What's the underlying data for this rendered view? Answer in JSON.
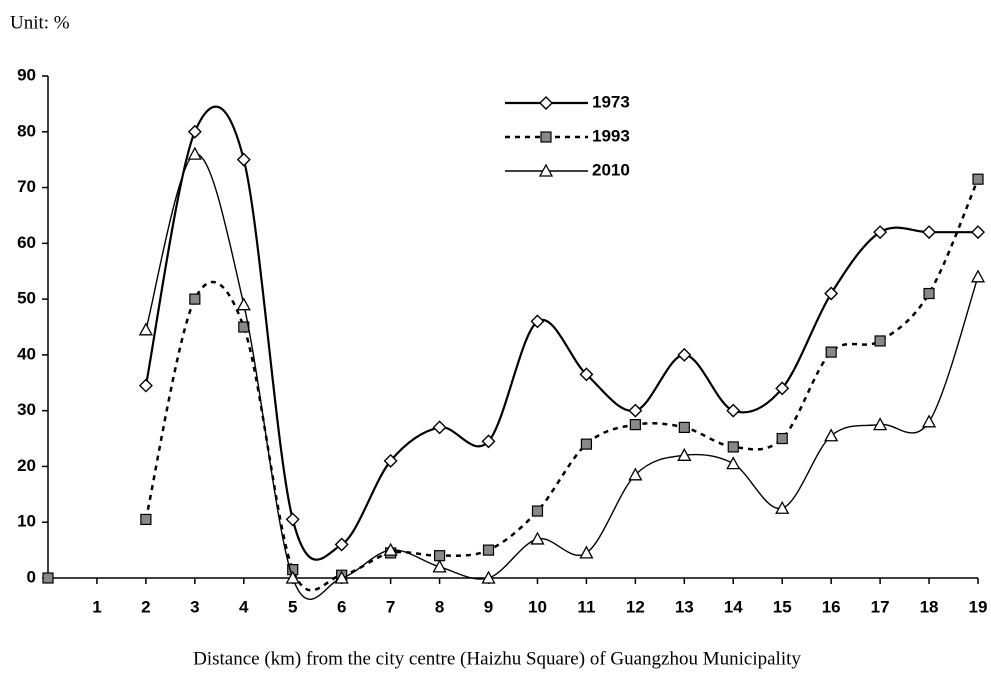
{
  "chart_data": {
    "type": "line",
    "unit_label": "Unit: %",
    "x_label": "Distance (km) from the city centre (Haizhu Square) of Guangzhou Municipality",
    "x": [
      0,
      1,
      2,
      3,
      4,
      5,
      6,
      7,
      8,
      9,
      10,
      11,
      12,
      13,
      14,
      15,
      16,
      17,
      18,
      19
    ],
    "xlim": [
      0,
      19
    ],
    "xticks": [
      1,
      2,
      3,
      4,
      5,
      6,
      7,
      8,
      9,
      10,
      11,
      12,
      13,
      14,
      15,
      16,
      17,
      18,
      19
    ],
    "ylim": [
      0,
      90
    ],
    "yticks": [
      0,
      10,
      20,
      30,
      40,
      50,
      60,
      70,
      80,
      90
    ],
    "grid": false,
    "legend": "top",
    "series": [
      {
        "name": "1973",
        "color": "#000000",
        "dash": "solid",
        "marker": "diamond",
        "values": [
          null,
          null,
          34.5,
          80,
          75,
          10.5,
          6,
          21,
          27,
          24.5,
          46,
          36.5,
          30,
          40,
          30,
          34,
          51,
          62,
          62,
          62
        ]
      },
      {
        "name": "1993",
        "color": "#000000",
        "dash": "dotted",
        "marker": "square",
        "values": [
          0,
          null,
          10.5,
          50,
          45,
          1.5,
          0.5,
          4.5,
          4,
          5,
          12,
          24,
          27.5,
          27,
          23.5,
          25,
          40.5,
          42.5,
          51,
          71.5
        ]
      },
      {
        "name": "2010",
        "color": "#000000",
        "dash": "thin",
        "marker": "triangle",
        "values": [
          null,
          null,
          44.5,
          76,
          49,
          0,
          0,
          5,
          2,
          0,
          7,
          4.5,
          18.5,
          22,
          20.5,
          12.5,
          25.5,
          27.5,
          28,
          54
        ]
      }
    ]
  }
}
